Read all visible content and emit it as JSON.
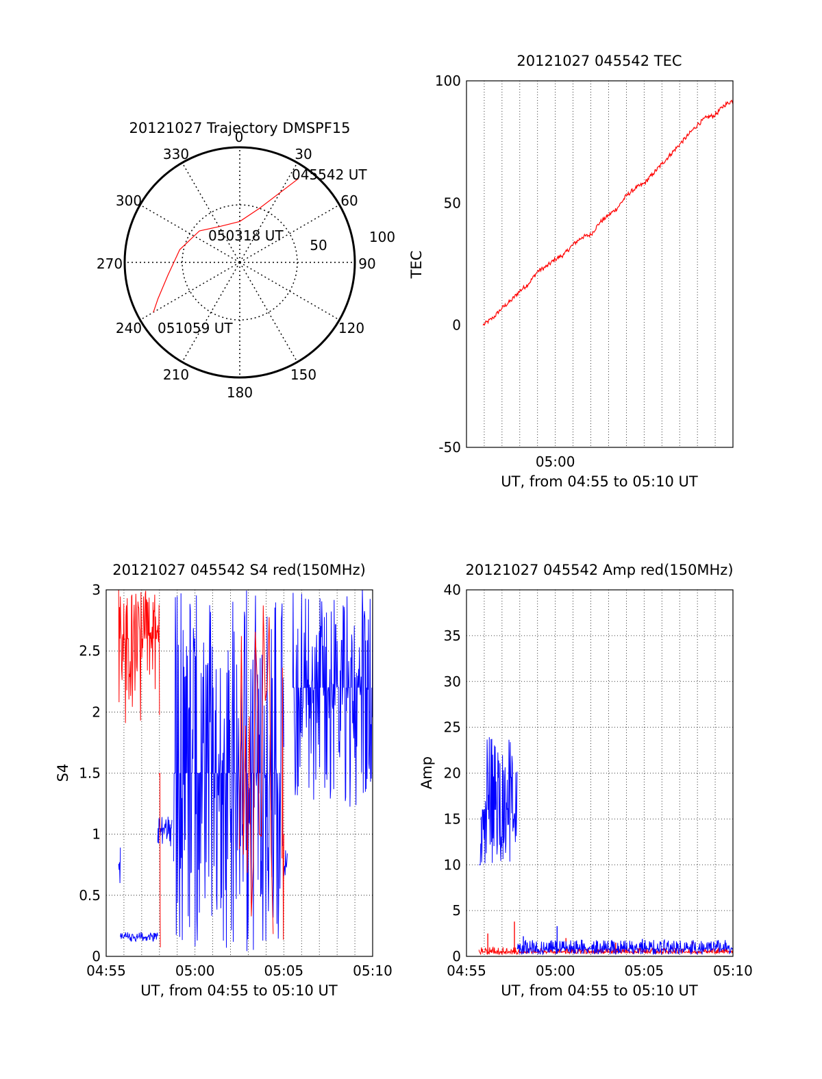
{
  "colors": {
    "red": "#ff0000",
    "blue": "#0000ff",
    "axis": "#000000",
    "grid": "#000000"
  },
  "chart_data": [
    {
      "id": "trajectory",
      "type": "scatter",
      "title": "20121027 Trajectory DMSPF15",
      "projection": "polar",
      "azimuth_labels": [
        "0",
        "30",
        "60",
        "90",
        "120",
        "150",
        "180",
        "210",
        "240",
        "270",
        "300",
        "330"
      ],
      "elevation_labels": [
        "50",
        "100"
      ],
      "series": [
        {
          "color": "red",
          "points": [
            {
              "az": 35,
              "el": 10
            },
            {
              "az": 20,
              "el": 45
            },
            {
              "az": 0,
              "el": 58
            },
            {
              "az": -28,
              "el": 58
            },
            {
              "az": -52,
              "el": 50
            },
            {
              "az": -78,
              "el": 42
            },
            {
              "az": -100,
              "el": 33
            },
            {
              "az": -114,
              "el": 20
            },
            {
              "az": -120,
              "el": 12
            }
          ]
        }
      ],
      "annotations": [
        "045542 UT",
        "050318 UT",
        "051059 UT"
      ]
    },
    {
      "id": "tec",
      "type": "line",
      "title": "20121027 045542 TEC",
      "xlabel": "UT, from 04:55 to 05:10 UT",
      "ylabel": "TEC",
      "xlim": [
        0,
        15
      ],
      "ylim": [
        -50,
        100
      ],
      "x_tick_labels": [
        {
          "x": 5,
          "label": "05:00"
        }
      ],
      "y_ticks": [
        -50,
        0,
        50,
        100
      ],
      "series": [
        {
          "color": "red",
          "x": [
            0.93,
            1.5,
            2,
            2.5,
            3,
            3.5,
            4,
            4.5,
            5,
            5.5,
            6,
            6.5,
            7,
            7.5,
            8,
            8.5,
            9,
            9.5,
            10,
            10.5,
            11,
            11.5,
            12,
            12.5,
            13,
            13.5,
            14,
            14.5,
            15
          ],
          "y": [
            0,
            3,
            7,
            10,
            14,
            17,
            22,
            24,
            27,
            29,
            33,
            36,
            37,
            42,
            45,
            48,
            53,
            56,
            58,
            62,
            66,
            70,
            74,
            78,
            82,
            85,
            86,
            90,
            92
          ]
        }
      ]
    },
    {
      "id": "s4",
      "type": "line",
      "title": "20121027 045542 S4 red(150MHz)",
      "xlabel": "UT, from 04:55 to 05:10 UT",
      "ylabel": "S4",
      "xlim": [
        0,
        15
      ],
      "ylim": [
        0,
        3
      ],
      "x_tick_labels": [
        {
          "x": 0,
          "label": "04:55"
        },
        {
          "x": 5,
          "label": "05:00"
        },
        {
          "x": 10,
          "label": "05:05"
        },
        {
          "x": 15,
          "label": "05:10"
        }
      ],
      "y_ticks": [
        {
          "v": 0,
          "label": "0"
        },
        {
          "v": 0.5,
          "label": "0.5"
        },
        {
          "v": 1,
          "label": "1"
        },
        {
          "v": 1.5,
          "label": "1.5"
        },
        {
          "v": 2,
          "label": "2"
        },
        {
          "v": 2.5,
          "label": "2.5"
        },
        {
          "v": 3,
          "label": "3"
        }
      ],
      "series": [
        {
          "color": "red",
          "segments": [
            {
              "x0": 0.7,
              "x1": 3.0,
              "base": 2.6,
              "min": 1.9,
              "max": 3.0
            },
            {
              "x0": 3.0,
              "x1": 3.05,
              "base": 1.5,
              "min": 0.0,
              "max": 3.0
            },
            {
              "x0": 7.5,
              "x1": 9.4,
              "base": 1.0,
              "min": 0.0,
              "max": 3.0,
              "sparse": true
            },
            {
              "x0": 9.9,
              "x1": 10.0,
              "base": 1.0,
              "min": 0.0,
              "max": 3.0,
              "sparse": true
            }
          ]
        },
        {
          "color": "blue",
          "segments": [
            {
              "x0": 0.7,
              "x1": 0.8,
              "base": 0.6,
              "min": 0.3,
              "max": 1.2
            },
            {
              "x0": 0.8,
              "x1": 2.9,
              "base": 0.16,
              "min": 0.12,
              "max": 0.2
            },
            {
              "x0": 2.9,
              "x1": 3.7,
              "base": 1.05,
              "min": 0.9,
              "max": 1.15
            },
            {
              "x0": 3.8,
              "x1": 10.0,
              "base": 1.5,
              "min": 0.0,
              "max": 3.0
            },
            {
              "x0": 10.0,
              "x1": 10.2,
              "base": 0.75,
              "min": 0.65,
              "max": 0.9
            },
            {
              "x0": 10.5,
              "x1": 15.0,
              "base": 2.2,
              "min": 1.2,
              "max": 3.0
            }
          ]
        }
      ]
    },
    {
      "id": "amp",
      "type": "line",
      "title": "20121027 045542 Amp red(150MHz)",
      "xlabel": "UT, from 04:55 to 05:10 UT",
      "ylabel": "Amp",
      "xlim": [
        0,
        15
      ],
      "ylim": [
        0,
        40
      ],
      "x_tick_labels": [
        {
          "x": 0,
          "label": "04:55"
        },
        {
          "x": 5,
          "label": "05:00"
        },
        {
          "x": 10,
          "label": "05:05"
        },
        {
          "x": 15,
          "label": "05:10"
        }
      ],
      "y_ticks": [
        0,
        5,
        10,
        15,
        20,
        25,
        30,
        35,
        40
      ],
      "series": [
        {
          "color": "red",
          "segments": [
            {
              "x0": 0.7,
              "x1": 2.9,
              "base": 0.5,
              "min": 0.2,
              "max": 1.0
            },
            {
              "x0": 2.9,
              "x1": 15.0,
              "base": 0.5,
              "min": 0.3,
              "max": 0.9
            }
          ],
          "spikes": [
            {
              "x": 1.2,
              "y": 2.5
            },
            {
              "x": 2.7,
              "y": 3.8
            },
            {
              "x": 5.6,
              "y": 2.0
            },
            {
              "x": 8.4,
              "y": 1.5
            },
            {
              "x": 12.7,
              "y": 1.6
            }
          ]
        },
        {
          "color": "blue",
          "segments": [
            {
              "x0": 0.7,
              "x1": 0.8,
              "base": 10.0,
              "min": 0.5,
              "max": 19.0
            },
            {
              "x0": 0.8,
              "x1": 2.85,
              "base": 16.0,
              "min": 10.0,
              "max": 24.0
            },
            {
              "x0": 2.85,
              "x1": 15.0,
              "base": 0.8,
              "min": 0.2,
              "max": 1.8
            }
          ],
          "spikes": [
            {
              "x": 3.2,
              "y": 2.2
            },
            {
              "x": 5.1,
              "y": 3.3
            },
            {
              "x": 6.5,
              "y": 1.8
            },
            {
              "x": 8.3,
              "y": 1.6
            },
            {
              "x": 9.9,
              "y": 1.9
            },
            {
              "x": 11.5,
              "y": 1.2
            }
          ]
        }
      ]
    }
  ]
}
